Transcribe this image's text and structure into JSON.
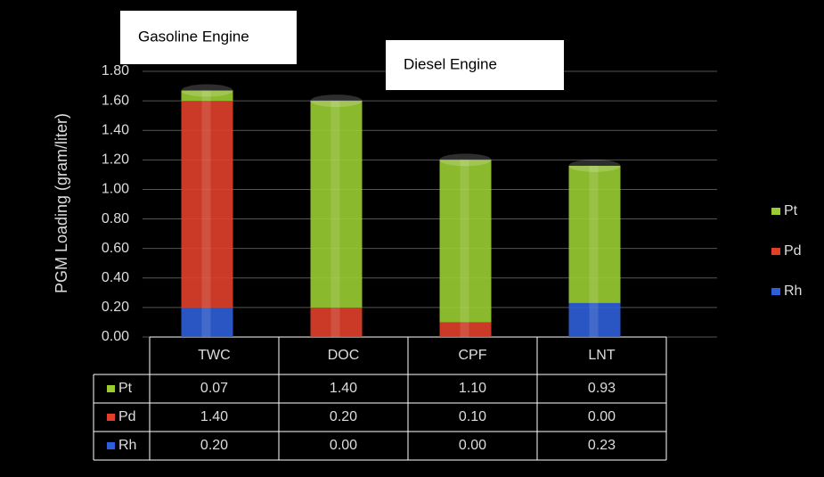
{
  "chart_data": {
    "type": "bar",
    "stacked": true,
    "y_label": "PGM Loading (gram/liter)",
    "annotations": [
      "Gasoline Engine",
      "Diesel Engine"
    ],
    "categories": [
      "TWC",
      "DOC",
      "CPF",
      "LNT"
    ],
    "series": [
      {
        "name": "Pt",
        "color": "#9acd32",
        "values": [
          0.07,
          1.4,
          1.1,
          0.93
        ],
        "value_labels": [
          "0.07",
          "1.40",
          "1.10",
          "0.93"
        ]
      },
      {
        "name": "Pd",
        "color": "#e0402a",
        "values": [
          1.4,
          0.2,
          0.1,
          0
        ],
        "value_labels": [
          "1.40",
          "0.20",
          "0.10",
          "0.00"
        ]
      },
      {
        "name": "Rh",
        "color": "#2f5fd8",
        "values": [
          0.2,
          0,
          0,
          0.23
        ],
        "value_labels": [
          "0.20",
          "0.00",
          "0.00",
          "0.23"
        ]
      }
    ],
    "ylim": [
      0,
      1.8
    ],
    "yticks": [
      {
        "value": 0,
        "label": "0.00"
      },
      {
        "value": 0.2,
        "label": "0.20"
      },
      {
        "value": 0.4,
        "label": "0.40"
      },
      {
        "value": 0.6,
        "label": "0.60"
      },
      {
        "value": 0.8,
        "label": "0.80"
      },
      {
        "value": 1.0,
        "label": "1.00"
      },
      {
        "value": 1.2,
        "label": "1.20"
      },
      {
        "value": 1.4,
        "label": "1.40"
      },
      {
        "value": 1.6,
        "label": "1.60"
      },
      {
        "value": 1.8,
        "label": "1.80"
      }
    ],
    "grid": true,
    "legend": "right"
  }
}
